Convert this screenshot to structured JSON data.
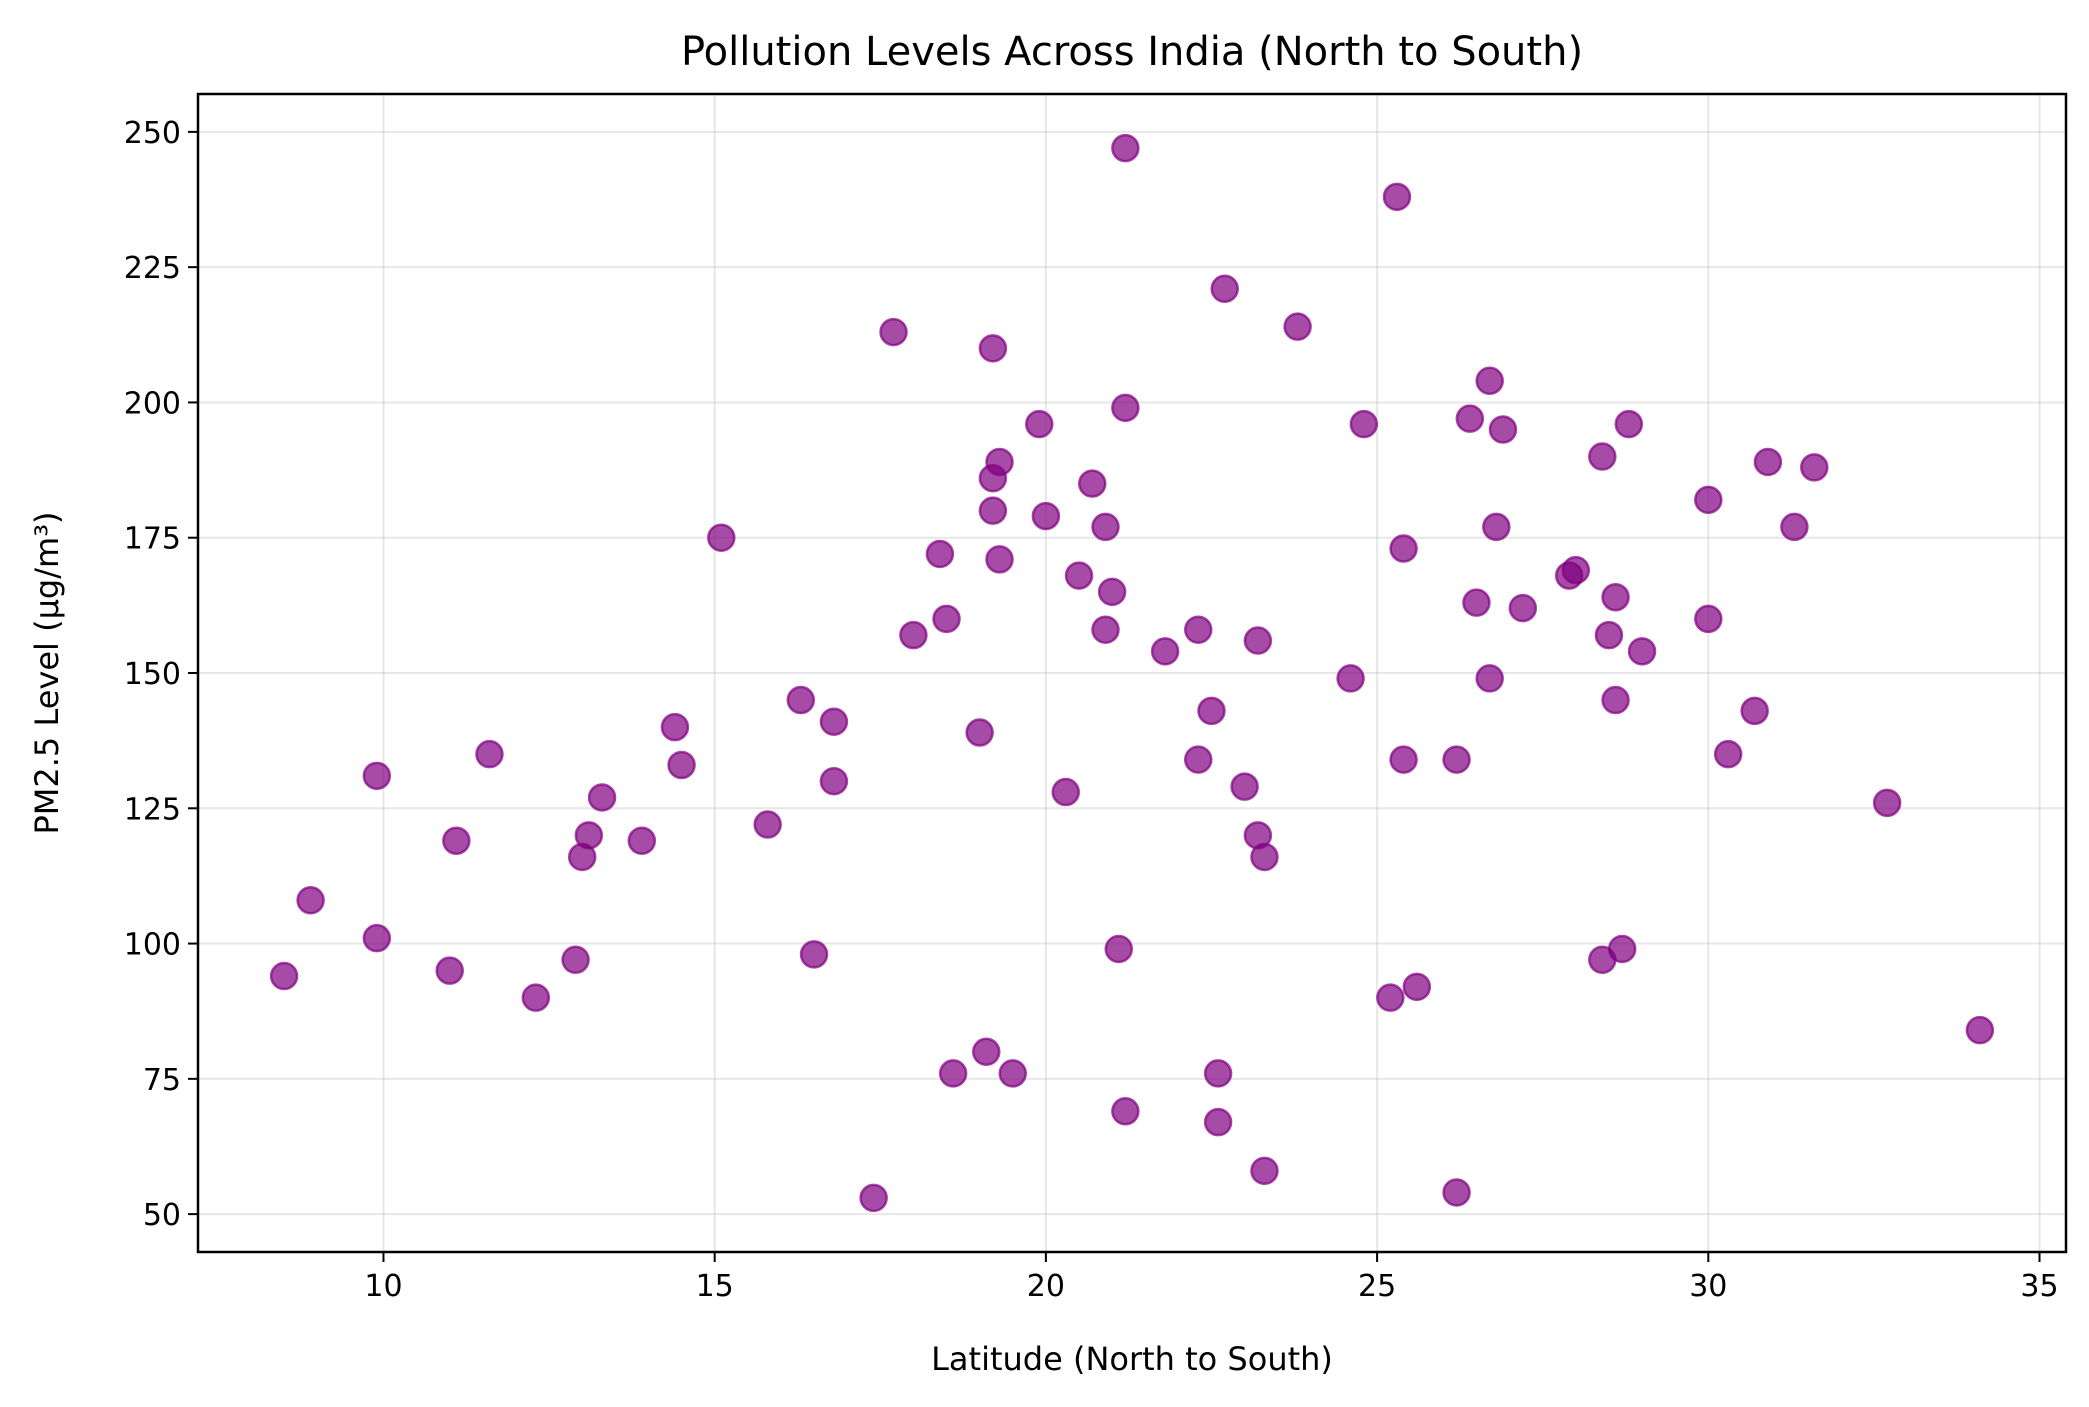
{
  "chart_data": {
    "type": "scatter",
    "title": "Pollution Levels Across India (North to South)",
    "xlabel": "Latitude (North to South)",
    "ylabel": "PM2.5 Level (µg/m³)",
    "xlim": [
      7.2,
      35.4
    ],
    "ylim": [
      43,
      257
    ],
    "xticks": [
      10,
      15,
      20,
      25,
      30,
      35
    ],
    "yticks": [
      50,
      75,
      100,
      125,
      150,
      175,
      200,
      225,
      250
    ],
    "grid": true,
    "marker_color": "#800080",
    "points": [
      {
        "x": 8.5,
        "y": 94
      },
      {
        "x": 8.9,
        "y": 108
      },
      {
        "x": 9.9,
        "y": 131
      },
      {
        "x": 9.9,
        "y": 101
      },
      {
        "x": 11.0,
        "y": 95
      },
      {
        "x": 11.1,
        "y": 119
      },
      {
        "x": 11.6,
        "y": 135
      },
      {
        "x": 12.3,
        "y": 90
      },
      {
        "x": 12.9,
        "y": 97
      },
      {
        "x": 13.0,
        "y": 116
      },
      {
        "x": 13.1,
        "y": 120
      },
      {
        "x": 13.3,
        "y": 127
      },
      {
        "x": 13.9,
        "y": 119
      },
      {
        "x": 14.4,
        "y": 140
      },
      {
        "x": 14.5,
        "y": 133
      },
      {
        "x": 15.1,
        "y": 175
      },
      {
        "x": 15.8,
        "y": 122
      },
      {
        "x": 16.3,
        "y": 145
      },
      {
        "x": 16.5,
        "y": 98
      },
      {
        "x": 16.8,
        "y": 141
      },
      {
        "x": 16.8,
        "y": 130
      },
      {
        "x": 17.4,
        "y": 53
      },
      {
        "x": 17.7,
        "y": 213
      },
      {
        "x": 18.0,
        "y": 157
      },
      {
        "x": 18.4,
        "y": 172
      },
      {
        "x": 18.5,
        "y": 160
      },
      {
        "x": 18.6,
        "y": 76
      },
      {
        "x": 19.0,
        "y": 139
      },
      {
        "x": 19.1,
        "y": 80
      },
      {
        "x": 19.2,
        "y": 210
      },
      {
        "x": 19.2,
        "y": 186
      },
      {
        "x": 19.2,
        "y": 180
      },
      {
        "x": 19.3,
        "y": 189
      },
      {
        "x": 19.3,
        "y": 171
      },
      {
        "x": 19.5,
        "y": 76
      },
      {
        "x": 19.9,
        "y": 196
      },
      {
        "x": 20.0,
        "y": 179
      },
      {
        "x": 20.3,
        "y": 128
      },
      {
        "x": 20.5,
        "y": 168
      },
      {
        "x": 20.7,
        "y": 185
      },
      {
        "x": 20.9,
        "y": 177
      },
      {
        "x": 20.9,
        "y": 158
      },
      {
        "x": 21.0,
        "y": 165
      },
      {
        "x": 21.1,
        "y": 99
      },
      {
        "x": 21.2,
        "y": 69
      },
      {
        "x": 21.2,
        "y": 199
      },
      {
        "x": 21.2,
        "y": 247
      },
      {
        "x": 21.8,
        "y": 154
      },
      {
        "x": 22.3,
        "y": 158
      },
      {
        "x": 22.3,
        "y": 134
      },
      {
        "x": 22.5,
        "y": 143
      },
      {
        "x": 22.6,
        "y": 76
      },
      {
        "x": 22.6,
        "y": 67
      },
      {
        "x": 22.7,
        "y": 221
      },
      {
        "x": 23.0,
        "y": 129
      },
      {
        "x": 23.2,
        "y": 120
      },
      {
        "x": 23.2,
        "y": 156
      },
      {
        "x": 23.3,
        "y": 58
      },
      {
        "x": 23.3,
        "y": 116
      },
      {
        "x": 23.8,
        "y": 214
      },
      {
        "x": 24.6,
        "y": 149
      },
      {
        "x": 24.8,
        "y": 196
      },
      {
        "x": 25.2,
        "y": 90
      },
      {
        "x": 25.3,
        "y": 238
      },
      {
        "x": 25.4,
        "y": 173
      },
      {
        "x": 25.4,
        "y": 134
      },
      {
        "x": 25.6,
        "y": 92
      },
      {
        "x": 26.2,
        "y": 134
      },
      {
        "x": 26.2,
        "y": 54
      },
      {
        "x": 26.4,
        "y": 197
      },
      {
        "x": 26.5,
        "y": 163
      },
      {
        "x": 26.7,
        "y": 149
      },
      {
        "x": 26.7,
        "y": 204
      },
      {
        "x": 26.8,
        "y": 177
      },
      {
        "x": 26.9,
        "y": 195
      },
      {
        "x": 27.2,
        "y": 162
      },
      {
        "x": 27.9,
        "y": 168
      },
      {
        "x": 28.0,
        "y": 169
      },
      {
        "x": 28.4,
        "y": 190
      },
      {
        "x": 28.4,
        "y": 97
      },
      {
        "x": 28.5,
        "y": 157
      },
      {
        "x": 28.6,
        "y": 164
      },
      {
        "x": 28.6,
        "y": 145
      },
      {
        "x": 28.7,
        "y": 99
      },
      {
        "x": 28.8,
        "y": 196
      },
      {
        "x": 29.0,
        "y": 154
      },
      {
        "x": 30.0,
        "y": 160
      },
      {
        "x": 30.0,
        "y": 182
      },
      {
        "x": 30.3,
        "y": 135
      },
      {
        "x": 30.7,
        "y": 143
      },
      {
        "x": 30.9,
        "y": 189
      },
      {
        "x": 31.3,
        "y": 177
      },
      {
        "x": 31.6,
        "y": 188
      },
      {
        "x": 32.7,
        "y": 126
      },
      {
        "x": 34.1,
        "y": 84
      }
    ]
  }
}
